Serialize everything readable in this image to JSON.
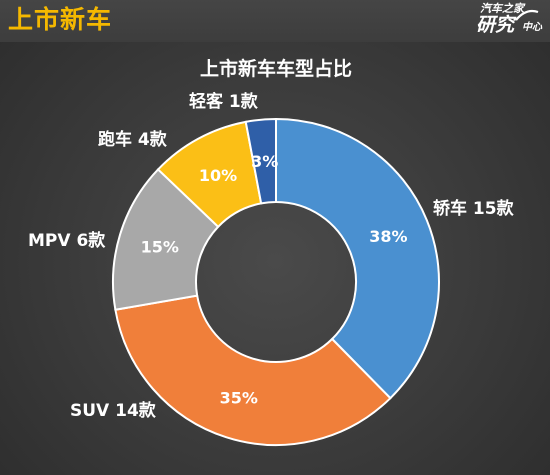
{
  "header": {
    "title": "上市新车",
    "brand_line1": "汽车之家",
    "brand_line2a": "研究",
    "brand_line2b": "中心",
    "title_color": "#f5b800"
  },
  "chart_data": {
    "type": "pie",
    "variant": "donut",
    "title": "上市新车车型占比",
    "slices": [
      {
        "name": "轿车",
        "count_label": "15款",
        "label": "轿车 15款",
        "value": 38,
        "pct_label": "38%",
        "color": "#4a90d0"
      },
      {
        "name": "SUV",
        "count_label": "14款",
        "label": "SUV 14款",
        "value": 35,
        "pct_label": "35%",
        "color": "#f07f3a"
      },
      {
        "name": "MPV",
        "count_label": "6款",
        "label": "MPV 6款",
        "value": 15,
        "pct_label": "15%",
        "color": "#a8a8a8"
      },
      {
        "name": "跑车",
        "count_label": "4款",
        "label": "跑车 4款",
        "value": 10,
        "pct_label": "10%",
        "color": "#fbbf16"
      },
      {
        "name": "轻客",
        "count_label": "1款",
        "label": "轻客 1款",
        "value": 3,
        "pct_label": "3%",
        "color": "#2f5fa8"
      }
    ]
  }
}
